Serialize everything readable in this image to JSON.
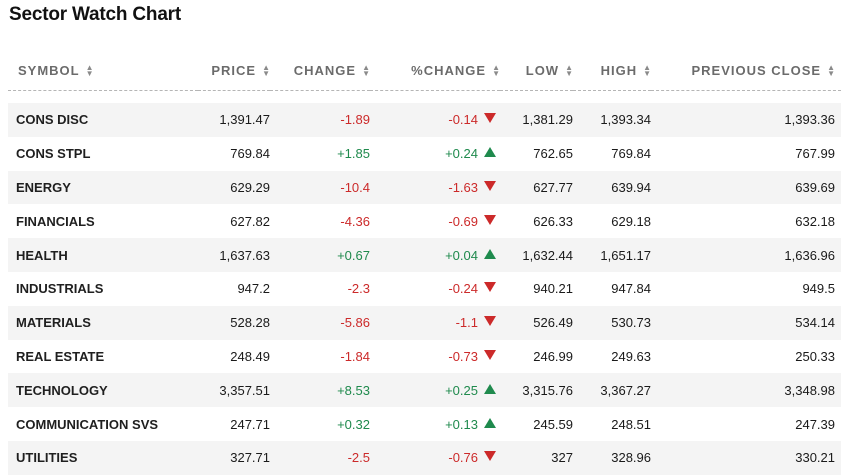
{
  "title": "Sector Watch Chart",
  "headers": {
    "symbol": "SYMBOL",
    "price": "PRICE",
    "change": "CHANGE",
    "pct_change": "%CHANGE",
    "low": "LOW",
    "high": "HIGH",
    "prev_close": "PREVIOUS CLOSE"
  },
  "colors": {
    "negative": "#cc2a2a",
    "positive": "#1f8a4d"
  },
  "rows": [
    {
      "symbol": "CONS DISC",
      "price": "1,391.47",
      "change": "-1.89",
      "pct": "-0.14",
      "dir": "down",
      "low": "1,381.29",
      "high": "1,393.34",
      "prev": "1,393.36"
    },
    {
      "symbol": "CONS STPL",
      "price": "769.84",
      "change": "+1.85",
      "pct": "+0.24",
      "dir": "up",
      "low": "762.65",
      "high": "769.84",
      "prev": "767.99"
    },
    {
      "symbol": "ENERGY",
      "price": "629.29",
      "change": "-10.4",
      "pct": "-1.63",
      "dir": "down",
      "low": "627.77",
      "high": "639.94",
      "prev": "639.69"
    },
    {
      "symbol": "FINANCIALS",
      "price": "627.82",
      "change": "-4.36",
      "pct": "-0.69",
      "dir": "down",
      "low": "626.33",
      "high": "629.18",
      "prev": "632.18"
    },
    {
      "symbol": "HEALTH",
      "price": "1,637.63",
      "change": "+0.67",
      "pct": "+0.04",
      "dir": "up",
      "low": "1,632.44",
      "high": "1,651.17",
      "prev": "1,636.96"
    },
    {
      "symbol": "INDUSTRIALS",
      "price": "947.2",
      "change": "-2.3",
      "pct": "-0.24",
      "dir": "down",
      "low": "940.21",
      "high": "947.84",
      "prev": "949.5"
    },
    {
      "symbol": "MATERIALS",
      "price": "528.28",
      "change": "-5.86",
      "pct": "-1.1",
      "dir": "down",
      "low": "526.49",
      "high": "530.73",
      "prev": "534.14"
    },
    {
      "symbol": "REAL ESTATE",
      "price": "248.49",
      "change": "-1.84",
      "pct": "-0.73",
      "dir": "down",
      "low": "246.99",
      "high": "249.63",
      "prev": "250.33"
    },
    {
      "symbol": "TECHNOLOGY",
      "price": "3,357.51",
      "change": "+8.53",
      "pct": "+0.25",
      "dir": "up",
      "low": "3,315.76",
      "high": "3,367.27",
      "prev": "3,348.98"
    },
    {
      "symbol": "COMMUNICATION SVS",
      "price": "247.71",
      "change": "+0.32",
      "pct": "+0.13",
      "dir": "up",
      "low": "245.59",
      "high": "248.51",
      "prev": "247.39"
    },
    {
      "symbol": "UTILITIES",
      "price": "327.71",
      "change": "-2.5",
      "pct": "-0.76",
      "dir": "down",
      "low": "327",
      "high": "328.96",
      "prev": "330.21"
    }
  ]
}
